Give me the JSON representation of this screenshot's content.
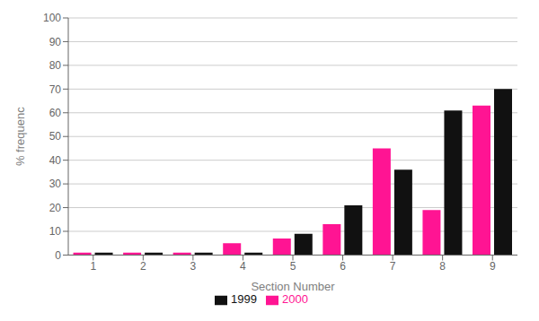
{
  "chart_data": {
    "type": "bar",
    "xlabel": "Section Number",
    "ylabel": "% frequenc",
    "categories": [
      "1",
      "2",
      "3",
      "4",
      "5",
      "6",
      "7",
      "8",
      "9"
    ],
    "series": [
      {
        "name": "2000",
        "color": "#FF1493",
        "values": [
          1,
          1,
          1,
          5,
          7,
          13,
          45,
          19,
          63
        ]
      },
      {
        "name": "1999",
        "color": "#111111",
        "values": [
          1,
          1,
          1,
          1,
          9,
          21,
          36,
          61,
          70
        ]
      }
    ],
    "ylim": [
      0,
      100
    ],
    "yticks": [
      0,
      10,
      20,
      30,
      40,
      50,
      60,
      70,
      80,
      90,
      100
    ],
    "grid": true,
    "legend": "bottom"
  }
}
